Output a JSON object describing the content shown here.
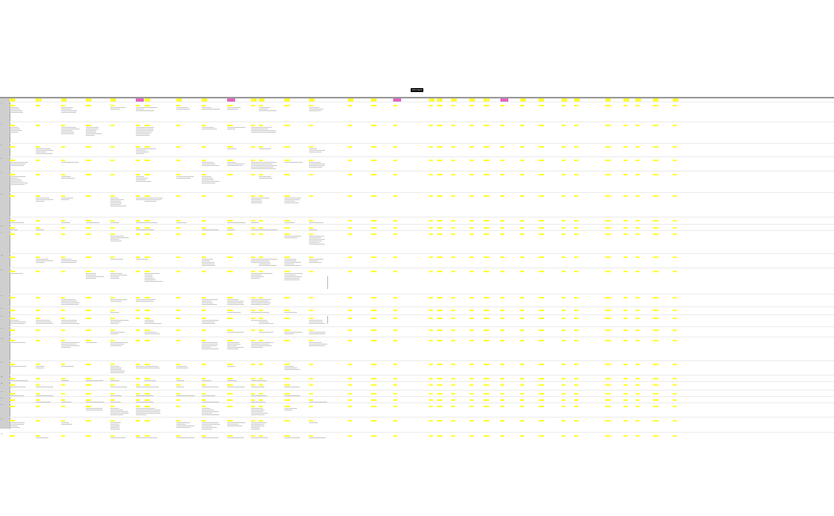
{
  "tooltip": {
    "label": "Comment"
  },
  "sheet": {
    "row_labels": [
      "1",
      "2",
      "3",
      "4",
      "5",
      "6",
      "7",
      "8",
      "9",
      "10",
      "11",
      "12",
      "13",
      "14",
      "15",
      "16",
      "17",
      "18",
      "19",
      "20",
      "21",
      "22",
      "23",
      "24",
      "25",
      "26",
      "27",
      "28",
      "29",
      "30"
    ],
    "highlight_colors": {
      "yellow": "#ffff33",
      "magenta": "#e066c0",
      "header_band": "#9b9b9b",
      "row_header": "#cfcfcf"
    },
    "columns": [
      {
        "label": "",
        "color": "yellow"
      },
      {
        "label": "",
        "color": "yellow"
      },
      {
        "label": "",
        "color": "yellow"
      },
      {
        "label": "",
        "color": "yellow"
      },
      {
        "label": "",
        "color": "yellow"
      },
      {
        "label": "",
        "color": "magenta"
      },
      {
        "label": "",
        "color": "yellow"
      },
      {
        "label": "",
        "color": "yellow"
      },
      {
        "label": "",
        "color": "yellow"
      },
      {
        "label": "",
        "color": "magenta"
      },
      {
        "label": "",
        "color": "yellow"
      },
      {
        "label": "",
        "color": "yellow"
      },
      {
        "label": "",
        "color": "yellow"
      },
      {
        "label": "",
        "color": "yellow"
      },
      {
        "label": "",
        "color": "yellow"
      },
      {
        "label": "",
        "color": "yellow"
      },
      {
        "label": "",
        "color": "magenta"
      },
      {
        "label": "",
        "color": "yellow"
      },
      {
        "label": "",
        "color": "yellow"
      },
      {
        "label": "",
        "color": "yellow"
      },
      {
        "label": "",
        "color": "yellow"
      },
      {
        "label": "",
        "color": "yellow"
      },
      {
        "label": "",
        "color": "magenta"
      },
      {
        "label": "",
        "color": "yellow"
      },
      {
        "label": "",
        "color": "yellow"
      },
      {
        "label": "",
        "color": "yellow"
      },
      {
        "label": "",
        "color": "yellow"
      },
      {
        "label": "",
        "color": "yellow"
      },
      {
        "label": "",
        "color": "yellow"
      },
      {
        "label": "",
        "color": "yellow"
      },
      {
        "label": "",
        "color": "yellow"
      },
      {
        "label": "",
        "color": "yellow"
      }
    ]
  }
}
